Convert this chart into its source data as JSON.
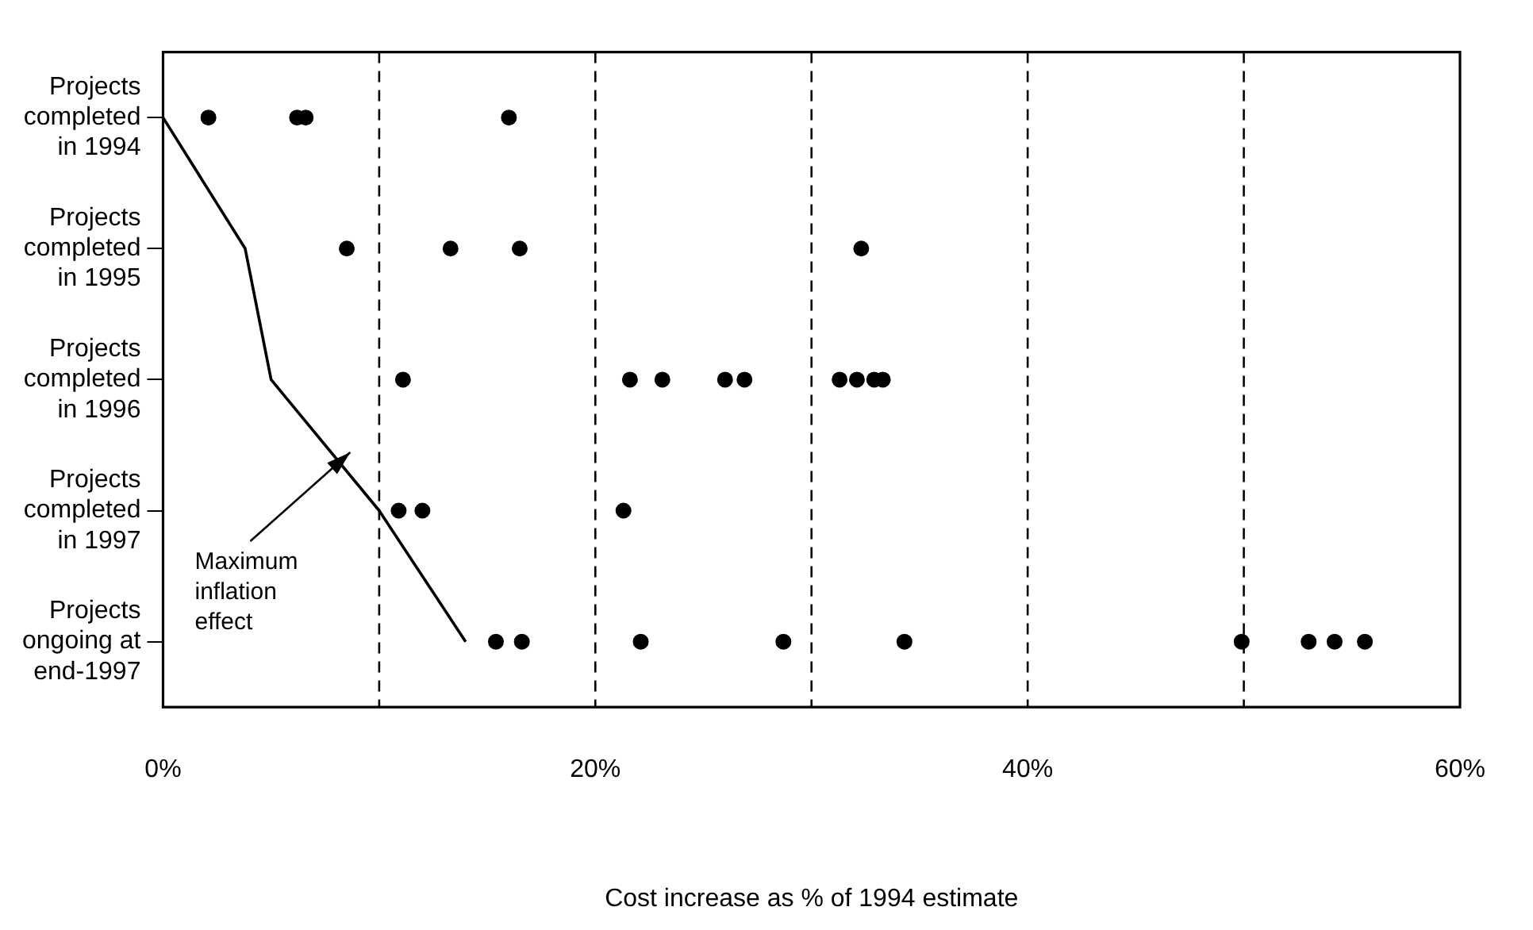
{
  "chart_data": {
    "type": "scatter",
    "orientation": "horizontal",
    "xlabel": "Cost increase as % of 1994 estimate",
    "categories": [
      "Projects completed in 1994",
      "Projects completed in 1995",
      "Projects completed in 1996",
      "Projects completed in 1997",
      "Projects ongoing at end-1997"
    ],
    "series": [
      {
        "color": "#000000",
        "values": [
          2.1,
          8.5,
          11.1,
          10.9,
          15.4
        ]
      },
      {
        "color": "#000000",
        "values": [
          6.2,
          13.3,
          21.6,
          12.0,
          16.6
        ]
      },
      {
        "color": "#000000",
        "values": [
          6.6,
          16.5,
          23.1,
          21.3,
          22.1
        ]
      },
      {
        "color": "#000000",
        "values": [
          16.0,
          32.3,
          26.0,
          null,
          28.7
        ]
      },
      {
        "color": "#000000",
        "values": [
          null,
          null,
          26.9,
          null,
          34.3
        ]
      },
      {
        "color": "#000000",
        "values": [
          null,
          null,
          31.3,
          null,
          49.9
        ]
      },
      {
        "color": "#000000",
        "values": [
          null,
          null,
          32.1,
          null,
          53.0
        ]
      },
      {
        "color": "#000000",
        "values": [
          null,
          null,
          32.9,
          null,
          54.2
        ]
      },
      {
        "color": "#000000",
        "values": [
          null,
          null,
          33.3,
          null,
          55.6
        ]
      },
      {
        "type": "line",
        "color": "#000000",
        "marker": "none",
        "values": [
          0,
          3.8,
          5.0,
          10.0,
          14.0
        ]
      }
    ],
    "xlim": [
      0,
      60
    ],
    "xticks": [
      {
        "value": 0,
        "label": "0%"
      },
      {
        "value": 10,
        "label": null
      },
      {
        "value": 20,
        "label": "20%"
      },
      {
        "value": 30,
        "label": null
      },
      {
        "value": 40,
        "label": "40%"
      },
      {
        "value": 50,
        "label": null
      },
      {
        "value": 60,
        "label": "60%"
      }
    ],
    "grid": "x",
    "marker": "circle",
    "legend": false,
    "annotations": [
      "Maximum inflation effect"
    ]
  }
}
